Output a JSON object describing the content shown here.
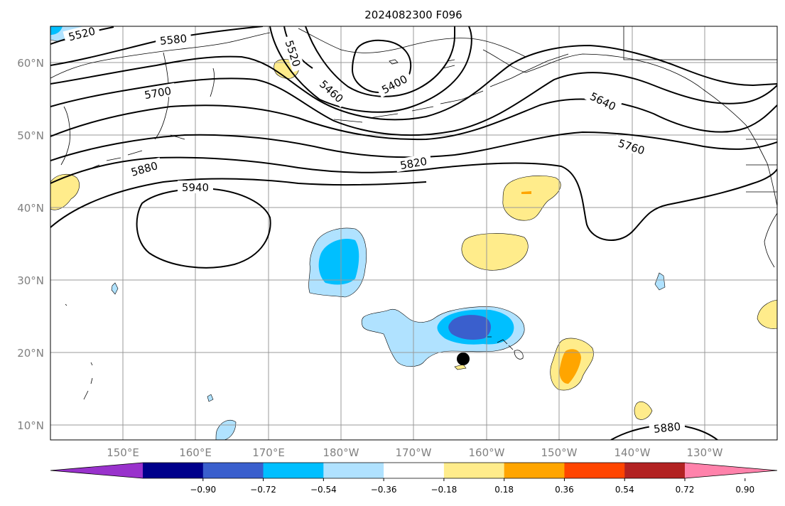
{
  "title": "2024082300 F096",
  "lat_labels": [
    "60°N",
    "50°N",
    "40°N",
    "30°N",
    "20°N",
    "10°N"
  ],
  "lon_labels": [
    "150°E",
    "160°E",
    "170°E",
    "180°W",
    "170°W",
    "160°W",
    "150°W",
    "140°W",
    "130°W"
  ],
  "contour_labels": [
    "5520",
    "5580",
    "5520",
    "5460",
    "5400",
    "5700",
    "5640",
    "5760",
    "5820",
    "5880",
    "5940",
    "5880"
  ],
  "colorbar": {
    "tick_labels": [
      "−0.90",
      "−0.72",
      "−0.54",
      "−0.36",
      "−0.18",
      "0.18",
      "0.36",
      "0.54",
      "0.72",
      "0.90"
    ],
    "colors": [
      "#9932cc",
      "#00008b",
      "#3a5fcd",
      "#00bfff",
      "#b0e2ff",
      "#ffffff",
      "#ffec8b",
      "#ffa500",
      "#ff4500",
      "#b22222",
      "#ff82ab"
    ]
  },
  "fill_colors": {
    "light_blue": "#b0e2ff",
    "blue": "#00bfff",
    "royal_blue": "#3a5fcd",
    "light_yellow": "#ffec8b",
    "orange": "#ffa500"
  },
  "marker": "storm-center-dot"
}
